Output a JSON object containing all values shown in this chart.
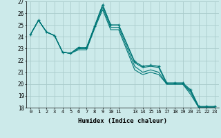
{
  "xlabel": "Humidex (Indice chaleur)",
  "bg_color": "#cceaea",
  "grid_color": "#aacccc",
  "line_color": "#007777",
  "xlim": [
    -0.5,
    23.5
  ],
  "ylim": [
    18,
    27
  ],
  "xtick_positions": [
    0,
    1,
    2,
    3,
    4,
    5,
    6,
    7,
    8,
    9,
    10,
    11,
    13,
    14,
    15,
    16,
    17,
    18,
    19,
    20,
    21,
    22,
    23
  ],
  "xtick_labels": [
    "0",
    "1",
    "2",
    "3",
    "4",
    "5",
    "6",
    "7",
    "8",
    "9",
    "10",
    "11",
    "13",
    "14",
    "15",
    "16",
    "17",
    "18",
    "19",
    "20",
    "21",
    "22",
    "23"
  ],
  "yticks": [
    18,
    19,
    20,
    21,
    22,
    23,
    24,
    25,
    26,
    27
  ],
  "x_indices": [
    0,
    1,
    2,
    3,
    4,
    5,
    6,
    7,
    8,
    9,
    10,
    11,
    13,
    14,
    15,
    16,
    17,
    18,
    19,
    20,
    21,
    22,
    23
  ],
  "series": [
    [
      24.2,
      25.4,
      24.4,
      24.1,
      22.7,
      22.6,
      23.1,
      23.1,
      24.9,
      26.7,
      25.0,
      25.0,
      21.9,
      21.5,
      21.6,
      21.5,
      20.1,
      20.1,
      20.1,
      19.5,
      18.1,
      18.1,
      18.1
    ],
    [
      24.2,
      25.4,
      24.4,
      24.1,
      22.7,
      22.6,
      23.1,
      23.1,
      24.9,
      26.7,
      25.0,
      25.0,
      21.8,
      21.4,
      21.5,
      21.4,
      20.0,
      20.0,
      20.0,
      19.4,
      18.0,
      18.0,
      18.0
    ],
    [
      24.2,
      25.4,
      24.4,
      24.1,
      22.7,
      22.6,
      23.0,
      23.0,
      24.8,
      26.5,
      24.8,
      24.8,
      21.5,
      21.0,
      21.2,
      21.0,
      20.0,
      20.0,
      20.0,
      19.3,
      18.0,
      18.0,
      18.0
    ],
    [
      24.2,
      25.4,
      24.4,
      24.1,
      22.7,
      22.6,
      22.9,
      22.9,
      24.7,
      26.3,
      24.6,
      24.6,
      21.2,
      20.8,
      21.0,
      20.8,
      20.0,
      20.0,
      20.0,
      19.1,
      18.0,
      18.0,
      18.0
    ]
  ],
  "marker_series_idx": 0
}
